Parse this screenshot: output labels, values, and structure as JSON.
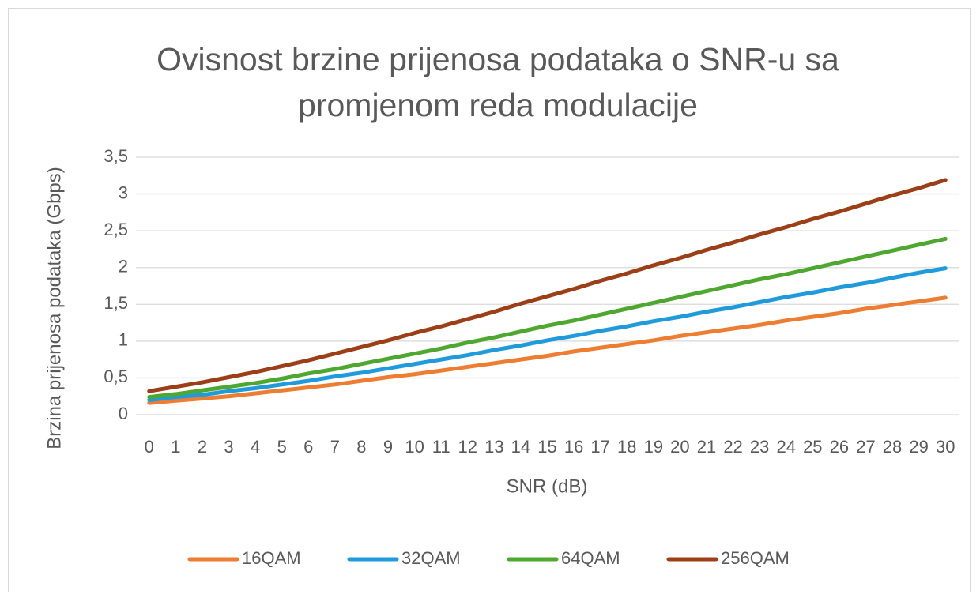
{
  "chart_data": {
    "type": "line",
    "title": "Ovisnost brzine prijenosa podataka o SNR-u sa promjenom reda modulacije",
    "x_label": "SNR (dB)",
    "y_label": "Brzina prijenosa podataka (Gbps)",
    "categories": [
      0,
      1,
      2,
      3,
      4,
      5,
      6,
      7,
      8,
      9,
      10,
      11,
      12,
      13,
      14,
      15,
      16,
      17,
      18,
      19,
      20,
      21,
      22,
      23,
      24,
      25,
      26,
      27,
      28,
      29,
      30
    ],
    "ylim": [
      0,
      3.5
    ],
    "yticks": [
      0,
      {
        "value": 0.5,
        "label": "0,5"
      },
      1,
      {
        "value": 1.5,
        "label": "1,5"
      },
      2,
      {
        "value": 2.5,
        "label": "2,5"
      },
      3,
      {
        "value": 3.5,
        "label": "3,5"
      }
    ],
    "grid": true,
    "legend": "bottom",
    "series": [
      {
        "name": "16QAM",
        "color": "#ed7d31",
        "values": [
          0.16,
          0.19,
          0.22,
          0.25,
          0.29,
          0.33,
          0.37,
          0.41,
          0.46,
          0.51,
          0.55,
          0.6,
          0.65,
          0.7,
          0.75,
          0.8,
          0.86,
          0.91,
          0.96,
          1.01,
          1.07,
          1.12,
          1.17,
          1.22,
          1.28,
          1.33,
          1.38,
          1.44,
          1.49,
          1.54,
          1.59
        ]
      },
      {
        "name": "32QAM",
        "color": "#1f9bdc",
        "values": [
          0.2,
          0.24,
          0.27,
          0.32,
          0.36,
          0.41,
          0.46,
          0.52,
          0.57,
          0.63,
          0.69,
          0.75,
          0.81,
          0.88,
          0.94,
          1.01,
          1.07,
          1.14,
          1.2,
          1.27,
          1.33,
          1.4,
          1.46,
          1.53,
          1.6,
          1.66,
          1.73,
          1.79,
          1.86,
          1.93,
          1.99
        ]
      },
      {
        "name": "64QAM",
        "color": "#4ea72e",
        "values": [
          0.24,
          0.28,
          0.33,
          0.38,
          0.43,
          0.49,
          0.56,
          0.62,
          0.69,
          0.76,
          0.83,
          0.9,
          0.98,
          1.05,
          1.13,
          1.21,
          1.28,
          1.36,
          1.44,
          1.52,
          1.6,
          1.68,
          1.76,
          1.84,
          1.91,
          1.99,
          2.07,
          2.15,
          2.23,
          2.31,
          2.39
        ]
      },
      {
        "name": "256QAM",
        "color": "#9c3f16",
        "values": [
          0.32,
          0.38,
          0.44,
          0.51,
          0.58,
          0.66,
          0.74,
          0.83,
          0.92,
          1.01,
          1.11,
          1.2,
          1.3,
          1.4,
          1.51,
          1.61,
          1.71,
          1.82,
          1.92,
          2.03,
          2.13,
          2.24,
          2.34,
          2.45,
          2.55,
          2.66,
          2.76,
          2.87,
          2.98,
          3.08,
          3.19
        ]
      }
    ]
  }
}
